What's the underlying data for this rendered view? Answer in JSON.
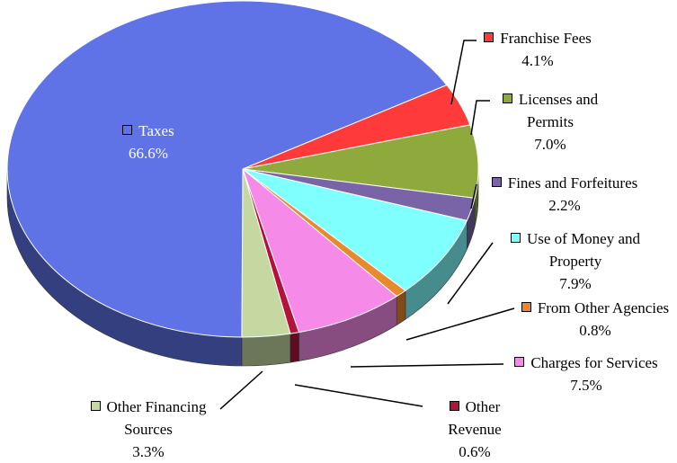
{
  "chart_data": {
    "type": "pie",
    "categories": [
      "Taxes",
      "Franchise Fees",
      "Licenses and Permits",
      "Fines and Forfeitures",
      "Use of Money and Property",
      "From Other Agencies",
      "Charges for Services",
      "Other Revenue",
      "Other Financing Sources"
    ],
    "values": [
      66.6,
      4.1,
      7.0,
      2.2,
      7.9,
      0.8,
      7.5,
      0.6,
      3.3
    ],
    "value_labels": [
      "66.6%",
      "4.1%",
      "7.0%",
      "2.2%",
      "7.9%",
      "0.8%",
      "7.5%",
      "0.6%",
      "3.3%"
    ],
    "colors": [
      "#5f72e6",
      "#ff3a3a",
      "#8faa3c",
      "#7a64a8",
      "#80ffff",
      "#e8892e",
      "#f68ae9",
      "#b3123a",
      "#c5d8a2"
    ]
  }
}
